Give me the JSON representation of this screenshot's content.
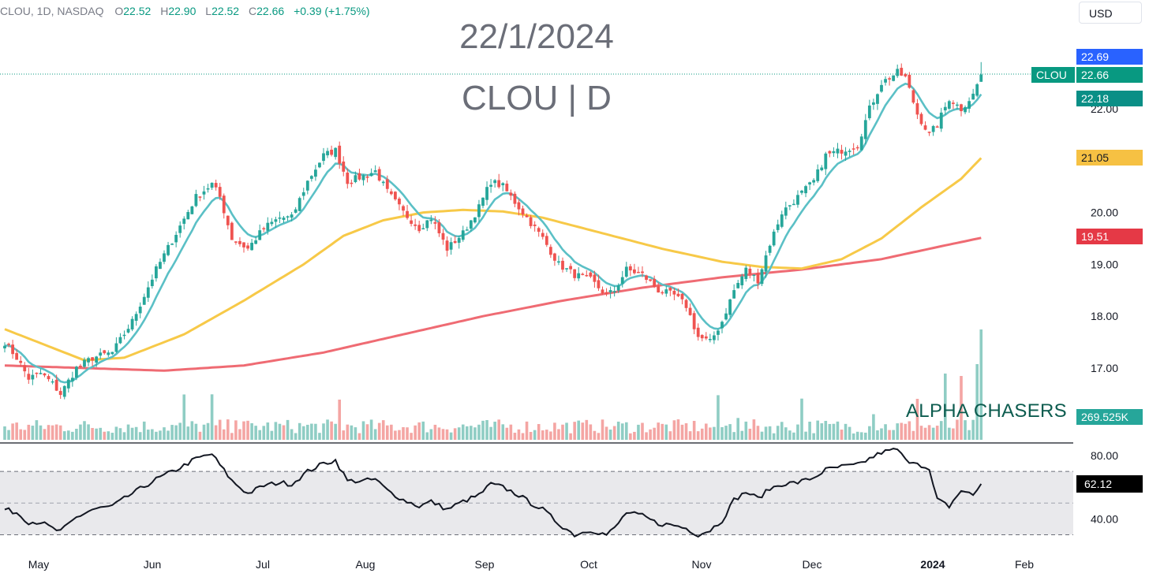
{
  "header": {
    "symbol_line": "CLOU, 1D, NASDAQ",
    "o_label": "O",
    "o_value": "22.52",
    "h_label": "H",
    "h_value": "22.90",
    "l_label": "L",
    "l_value": "22.52",
    "c_label": "C",
    "c_value": "22.66",
    "change": "+0.39 (+1.75%)"
  },
  "currency_button": "USD",
  "overlay": {
    "date": "22/1/2024",
    "title": "CLOU | D",
    "brand": "ALPHA CHASERS"
  },
  "price_badges": {
    "high_marker": "22.69",
    "symbol_tag": "CLOU",
    "last_price": "22.66",
    "ema_fast": "22.18",
    "ma_50": "21.05",
    "ma_200": "19.51",
    "volume": "269.525K",
    "rsi": "62.12"
  },
  "colors": {
    "up": "#26a69a",
    "down": "#ef5350",
    "ema_fast": "#5bc0c6",
    "ma_50": "#f7c948",
    "ma_200": "#ef6b73",
    "volume_up": "#8fcdc4",
    "volume_down": "#f4a5a3",
    "high_marker_bg": "#2962ff",
    "last_price_bg": "#089981",
    "ma_50_bg": "#f6c143",
    "ma_200_bg": "#e53946",
    "rsi_bg": "#000000"
  },
  "chart_data": {
    "type": "candlestick",
    "title": "CLOU | D",
    "price_axis": {
      "ticks": [
        "22.00",
        "20.00",
        "19.00",
        "18.00",
        "17.00"
      ],
      "ylim": [
        16.2,
        22.9
      ]
    },
    "rsi_axis": {
      "ticks": [
        "80.00",
        "40.00"
      ],
      "ylim": [
        22,
        86
      ],
      "bands": [
        30,
        70
      ]
    },
    "x_ticks": [
      "May",
      "Jun",
      "Jul",
      "Aug",
      "Sep",
      "Oct",
      "Nov",
      "Dec",
      "2024",
      "Feb"
    ],
    "anchors": {
      "close": [
        [
          0,
          17.5
        ],
        [
          3,
          17.2
        ],
        [
          6,
          16.8
        ],
        [
          9,
          16.9
        ],
        [
          12,
          16.7
        ],
        [
          14,
          16.5
        ],
        [
          18,
          17.0
        ],
        [
          22,
          17.2
        ],
        [
          27,
          17.3
        ],
        [
          32,
          17.9
        ],
        [
          38,
          18.9
        ],
        [
          43,
          19.6
        ],
        [
          48,
          20.3
        ],
        [
          52,
          20.55
        ],
        [
          54,
          20.3
        ],
        [
          57,
          19.5
        ],
        [
          61,
          19.3
        ],
        [
          65,
          19.7
        ],
        [
          69,
          19.9
        ],
        [
          72,
          19.9
        ],
        [
          76,
          20.6
        ],
        [
          80,
          21.1
        ],
        [
          83,
          21.2
        ],
        [
          86,
          20.6
        ],
        [
          90,
          20.7
        ],
        [
          93,
          20.8
        ],
        [
          96,
          20.4
        ],
        [
          100,
          20.0
        ],
        [
          104,
          19.7
        ],
        [
          107,
          19.9
        ],
        [
          111,
          19.3
        ],
        [
          115,
          19.6
        ],
        [
          119,
          20.1
        ],
        [
          122,
          20.6
        ],
        [
          125,
          20.5
        ],
        [
          129,
          20.1
        ],
        [
          132,
          19.8
        ],
        [
          135,
          19.5
        ],
        [
          139,
          19.0
        ],
        [
          143,
          18.8
        ],
        [
          147,
          18.7
        ],
        [
          151,
          18.4
        ],
        [
          153,
          18.5
        ],
        [
          156,
          18.9
        ],
        [
          160,
          18.8
        ],
        [
          164,
          18.5
        ],
        [
          168,
          18.4
        ],
        [
          171,
          18.2
        ],
        [
          174,
          17.6
        ],
        [
          177,
          17.5
        ],
        [
          180,
          17.9
        ],
        [
          183,
          18.5
        ],
        [
          186,
          18.9
        ],
        [
          189,
          18.7
        ],
        [
          192,
          19.4
        ],
        [
          195,
          20.0
        ],
        [
          199,
          20.3
        ],
        [
          203,
          20.6
        ],
        [
          206,
          21.1
        ],
        [
          210,
          21.2
        ],
        [
          214,
          21.3
        ],
        [
          217,
          22.0
        ],
        [
          220,
          22.5
        ],
        [
          224,
          22.7
        ],
        [
          226,
          22.6
        ],
        [
          229,
          21.9
        ],
        [
          232,
          21.5
        ],
        [
          234,
          21.7
        ],
        [
          237,
          22.2
        ],
        [
          240,
          22.0
        ],
        [
          243,
          22.27
        ],
        [
          245,
          22.66
        ]
      ],
      "ma_50": [
        [
          0,
          17.75
        ],
        [
          20,
          17.15
        ],
        [
          30,
          17.2
        ],
        [
          45,
          17.65
        ],
        [
          60,
          18.3
        ],
        [
          75,
          19.0
        ],
        [
          85,
          19.55
        ],
        [
          95,
          19.85
        ],
        [
          105,
          20.0
        ],
        [
          115,
          20.05
        ],
        [
          125,
          20.02
        ],
        [
          135,
          19.9
        ],
        [
          150,
          19.6
        ],
        [
          165,
          19.3
        ],
        [
          180,
          19.05
        ],
        [
          190,
          18.95
        ],
        [
          200,
          18.92
        ],
        [
          210,
          19.1
        ],
        [
          220,
          19.5
        ],
        [
          230,
          20.1
        ],
        [
          240,
          20.65
        ],
        [
          245,
          21.05
        ]
      ],
      "ma_200": [
        [
          0,
          17.05
        ],
        [
          40,
          16.95
        ],
        [
          60,
          17.05
        ],
        [
          80,
          17.3
        ],
        [
          100,
          17.65
        ],
        [
          120,
          18.0
        ],
        [
          140,
          18.3
        ],
        [
          160,
          18.55
        ],
        [
          180,
          18.75
        ],
        [
          200,
          18.9
        ],
        [
          220,
          19.1
        ],
        [
          235,
          19.35
        ],
        [
          245,
          19.51
        ]
      ],
      "rsi": [
        [
          0,
          46
        ],
        [
          3,
          44
        ],
        [
          6,
          38
        ],
        [
          9,
          38
        ],
        [
          12,
          34
        ],
        [
          14,
          32
        ],
        [
          18,
          41
        ],
        [
          22,
          46
        ],
        [
          27,
          48
        ],
        [
          32,
          56
        ],
        [
          38,
          65
        ],
        [
          43,
          71
        ],
        [
          48,
          78
        ],
        [
          52,
          81
        ],
        [
          54,
          74
        ],
        [
          57,
          64
        ],
        [
          61,
          56
        ],
        [
          65,
          61
        ],
        [
          69,
          63
        ],
        [
          72,
          62
        ],
        [
          76,
          70
        ],
        [
          80,
          75
        ],
        [
          83,
          77
        ],
        [
          86,
          64
        ],
        [
          90,
          64
        ],
        [
          93,
          65
        ],
        [
          96,
          58
        ],
        [
          100,
          52
        ],
        [
          104,
          48
        ],
        [
          107,
          51
        ],
        [
          111,
          46
        ],
        [
          115,
          51
        ],
        [
          119,
          55
        ],
        [
          122,
          62
        ],
        [
          125,
          60
        ],
        [
          129,
          55
        ],
        [
          132,
          50
        ],
        [
          135,
          46
        ],
        [
          139,
          37
        ],
        [
          143,
          30
        ],
        [
          147,
          33
        ],
        [
          151,
          30
        ],
        [
          153,
          34
        ],
        [
          156,
          44
        ],
        [
          160,
          42
        ],
        [
          164,
          37
        ],
        [
          168,
          36
        ],
        [
          171,
          34
        ],
        [
          174,
          30
        ],
        [
          177,
          33
        ],
        [
          180,
          39
        ],
        [
          183,
          52
        ],
        [
          186,
          57
        ],
        [
          189,
          53
        ],
        [
          192,
          59
        ],
        [
          195,
          62
        ],
        [
          199,
          63
        ],
        [
          203,
          66
        ],
        [
          206,
          71
        ],
        [
          210,
          73
        ],
        [
          214,
          74
        ],
        [
          217,
          78
        ],
        [
          220,
          82
        ],
        [
          224,
          84
        ],
        [
          226,
          77
        ],
        [
          229,
          76
        ],
        [
          232,
          70
        ],
        [
          234,
          52
        ],
        [
          237,
          48
        ],
        [
          240,
          58
        ],
        [
          243,
          55
        ],
        [
          245,
          62.12
        ]
      ]
    },
    "volume_spikes": [
      [
        45,
        2.6
      ],
      [
        52,
        2.4
      ],
      [
        58,
        2.5
      ],
      [
        84,
        2.8
      ],
      [
        147,
        2.1
      ],
      [
        179,
        2.2
      ],
      [
        184,
        2.5
      ],
      [
        200,
        3.3
      ],
      [
        218,
        3.2
      ],
      [
        229,
        4.0
      ],
      [
        236,
        3.6
      ],
      [
        240,
        3.8
      ],
      [
        244,
        3.9
      ]
    ]
  }
}
